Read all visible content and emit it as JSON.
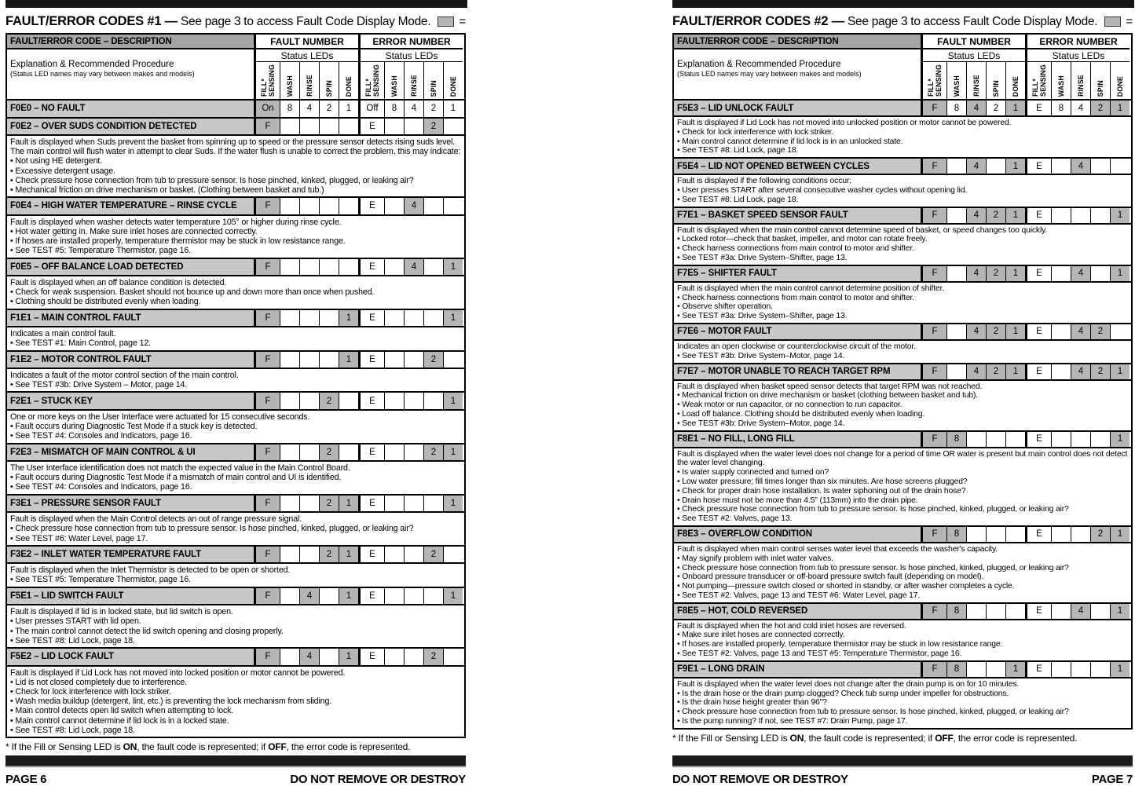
{
  "colors": {
    "led_on_bg": "#b5b5b5",
    "code_row_bg": "#c8c8c8",
    "table_header_bg": "#a5a5a5",
    "bar_color": "#161616"
  },
  "table_header": {
    "col_description": "FAULT/ERROR CODE – DESCRIPTION",
    "col_fault": "FAULT NUMBER",
    "col_error": "ERROR NUMBER",
    "status_leds": "Status LEDs",
    "explanation_title": "Explanation & Recommended Procedure",
    "explanation_sub": "(Status LED names may vary between makes and models)",
    "led_labels": [
      "FILL*\nSENSING",
      "WASH",
      "RINSE",
      "SPIN",
      "DONE"
    ]
  },
  "footnote": {
    "pre": "* If the Fill or Sensing LED is ",
    "on_word": "ON",
    "mid": ", the fault code is represented; if ",
    "off_word": "OFF",
    "post": ", the error code is represented."
  },
  "pages": [
    {
      "title_bold": "FAULT/ERROR CODES #1 —",
      "title_rest": " See page 3 to access Fault Code Display Mode.",
      "legend": "= ON",
      "footer_left": "PAGE 6",
      "footer_right": "DO NOT REMOVE OR DESTROY",
      "rows": [
        {
          "code": "F0E0 – NO FAULT",
          "fault_leds": [
            "On",
            "8",
            "4",
            "2",
            "1"
          ],
          "fault_on": [
            0
          ],
          "error_leds": [
            "Off",
            "8",
            "4",
            "2",
            "1"
          ],
          "error_on": [],
          "description": []
        },
        {
          "code": "F0E2 – OVER SUDS CONDITION DETECTED",
          "fault_leds": [
            "F",
            "",
            "",
            "",
            ""
          ],
          "fault_on": [
            0
          ],
          "error_leds": [
            "E",
            "",
            "",
            "2",
            ""
          ],
          "error_on": [
            3
          ],
          "description": [
            "Fault is displayed when Suds prevent the basket from spinning up to speed or the pressure sensor detects rising suds level. The main control will flush water in attempt to clear Suds. If the water flush is unable to correct the problem, this may indicate:",
            "• Not using HE detergent.",
            "• Excessive detergent usage.",
            "• Check pressure hose connection from tub to pressure sensor. Is hose pinched, kinked, plugged, or leaking air?",
            "• Mechanical friction on drive mechanism or basket. (Clothing between basket and tub.)"
          ]
        },
        {
          "code": "F0E4 – HIGH WATER TEMPERATURE – RINSE CYCLE",
          "fault_leds": [
            "F",
            "",
            "",
            "",
            ""
          ],
          "fault_on": [
            0
          ],
          "error_leds": [
            "E",
            "",
            "4",
            "",
            ""
          ],
          "error_on": [
            2
          ],
          "description": [
            "Fault is displayed when washer detects water temperature 105° or higher during rinse cycle.",
            "• Hot water getting in. Make sure inlet hoses are connected correctly.",
            "• If hoses are installed properly, temperature thermistor may be stuck in low resistance range.",
            "• See TEST #5: Temperature Thermistor, page 16."
          ]
        },
        {
          "code": "F0E5 – OFF BALANCE LOAD DETECTED",
          "fault_leds": [
            "F",
            "",
            "",
            "",
            ""
          ],
          "fault_on": [
            0
          ],
          "error_leds": [
            "E",
            "",
            "4",
            "",
            "1"
          ],
          "error_on": [
            2,
            4
          ],
          "description": [
            "Fault is displayed when an off balance condition is detected.",
            "• Check for weak suspension. Basket should not bounce up and down more than once when pushed.",
            "• Clothing should be distributed evenly when loading."
          ]
        },
        {
          "code": "F1E1 – MAIN CONTROL FAULT",
          "fault_leds": [
            "F",
            "",
            "",
            "",
            "1"
          ],
          "fault_on": [
            0,
            4
          ],
          "error_leds": [
            "E",
            "",
            "",
            "",
            "1"
          ],
          "error_on": [
            4
          ],
          "description": [
            "Indicates a main control fault.",
            "• See TEST #1: Main Control, page 12."
          ]
        },
        {
          "code": "F1E2 – MOTOR CONTROL FAULT",
          "fault_leds": [
            "F",
            "",
            "",
            "",
            "1"
          ],
          "fault_on": [
            0,
            4
          ],
          "error_leds": [
            "E",
            "",
            "",
            "2",
            ""
          ],
          "error_on": [
            3
          ],
          "description": [
            "Indicates a fault of the motor control section of the main control.",
            "• See TEST #3b: Drive System – Motor, page 14."
          ]
        },
        {
          "code": "F2E1 – STUCK KEY",
          "fault_leds": [
            "F",
            "",
            "",
            "2",
            ""
          ],
          "fault_on": [
            0,
            3
          ],
          "error_leds": [
            "E",
            "",
            "",
            "",
            "1"
          ],
          "error_on": [
            4
          ],
          "description": [
            "One or more keys on the User Interface were actuated for 15 consecutive seconds.",
            "• Fault occurs during Diagnostic Test Mode if a stuck key is detected.",
            "• See TEST #4: Consoles and Indicators, page 16."
          ]
        },
        {
          "code": "F2E3 – MISMATCH OF MAIN CONTROL & UI",
          "fault_leds": [
            "F",
            "",
            "",
            "2",
            ""
          ],
          "fault_on": [
            0,
            3
          ],
          "error_leds": [
            "E",
            "",
            "",
            "2",
            "1"
          ],
          "error_on": [
            3,
            4
          ],
          "description": [
            "The User Interface identification does not match the expected value in the Main Control Board.",
            "• Fault occurs during Diagnostic Test Mode if a mismatch of main control and UI is identified.",
            "• See TEST #4: Consoles and Indicators, page 16."
          ]
        },
        {
          "code": "F3E1 – PRESSURE SENSOR FAULT",
          "fault_leds": [
            "F",
            "",
            "",
            "2",
            "1"
          ],
          "fault_on": [
            0,
            3,
            4
          ],
          "error_leds": [
            "E",
            "",
            "",
            "",
            "1"
          ],
          "error_on": [
            4
          ],
          "description": [
            "Fault is displayed when the Main Control detects an out of range pressure signal.",
            "• Check pressure hose connection from tub to pressure sensor. Is hose pinched, kinked, plugged, or leaking air?",
            "• See TEST #6: Water Level, page 17."
          ]
        },
        {
          "code": "F3E2 – INLET WATER TEMPERATURE FAULT",
          "fault_leds": [
            "F",
            "",
            "",
            "2",
            "1"
          ],
          "fault_on": [
            0,
            3,
            4
          ],
          "error_leds": [
            "E",
            "",
            "",
            "2",
            ""
          ],
          "error_on": [
            3
          ],
          "description": [
            "Fault is displayed when the Inlet Thermistor is detected to be open or shorted.",
            "• See TEST #5: Temperature Thermistor, page 16."
          ]
        },
        {
          "code": "F5E1 – LID SWITCH FAULT",
          "fault_leds": [
            "F",
            "",
            "4",
            "",
            "1"
          ],
          "fault_on": [
            0,
            2,
            4
          ],
          "error_leds": [
            "E",
            "",
            "",
            "",
            "1"
          ],
          "error_on": [
            4
          ],
          "description": [
            "Fault is displayed if lid is in locked state, but lid switch is open.",
            "• User presses START with lid open.",
            "• The main control cannot detect the lid switch opening and closing properly.",
            "• See TEST #8: Lid Lock, page 18."
          ]
        },
        {
          "code": "F5E2 – LID LOCK FAULT",
          "fault_leds": [
            "F",
            "",
            "4",
            "",
            "1"
          ],
          "fault_on": [
            0,
            2,
            4
          ],
          "error_leds": [
            "E",
            "",
            "",
            "2",
            ""
          ],
          "error_on": [
            3
          ],
          "description": [
            "Fault is displayed if Lid Lock has not moved into locked position or motor cannot be powered.",
            "• Lid is not closed completely due to interference.",
            "• Check for lock interference with lock striker.",
            "• Wash media buildup (detergent, lint, etc.) is preventing the lock mechanism from sliding.",
            "• Main control detects open lid switch when attempting to lock.",
            "• Main control cannot determine if lid lock is in a locked state.",
            "• See TEST #8: Lid Lock, page 18."
          ]
        }
      ]
    },
    {
      "title_bold": "FAULT/ERROR CODES #2 —",
      "title_rest": " See page 3 to access Fault Code Display Mode.",
      "legend": "= ON",
      "footer_left": "DO NOT REMOVE OR DESTROY",
      "footer_right": "PAGE 7",
      "rows": [
        {
          "code": "F5E3 – LID UNLOCK FAULT",
          "fault_leds": [
            "F",
            "8",
            "4",
            "2",
            "1"
          ],
          "fault_on": [
            0,
            2,
            4
          ],
          "error_leds": [
            "E",
            "8",
            "4",
            "2",
            "1"
          ],
          "error_on": [
            3,
            4
          ],
          "description": [
            "Fault is displayed if Lid Lock has not moved into unlocked position or motor cannot be powered.",
            "• Check for lock interference with lock striker.",
            "• Main control cannot determine if lid lock is in an unlocked state.",
            "• See TEST #8: Lid Lock, page 18."
          ]
        },
        {
          "code": "F5E4 – LID NOT OPENED BETWEEN CYCLES",
          "fault_leds": [
            "F",
            "",
            "4",
            "",
            "1"
          ],
          "fault_on": [
            0,
            2,
            4
          ],
          "error_leds": [
            "E",
            "",
            "4",
            "",
            ""
          ],
          "error_on": [
            2
          ],
          "description": [
            "Fault is displayed if the following conditions occur:",
            "• User presses START after several consecutive washer cycles without opening lid.",
            "• See TEST #8: Lid Lock, page 18."
          ]
        },
        {
          "code": "F7E1 – BASKET SPEED SENSOR FAULT",
          "fault_leds": [
            "F",
            "",
            "4",
            "2",
            "1"
          ],
          "fault_on": [
            0,
            2,
            3,
            4
          ],
          "error_leds": [
            "E",
            "",
            "",
            "",
            "1"
          ],
          "error_on": [
            4
          ],
          "description": [
            "Fault is displayed when the main control cannot determine speed of basket, or speed changes too quickly.",
            "• Locked rotor—check that basket, impeller, and motor can rotate freely.",
            "• Check harness connections from main control to motor and shifter.",
            "• See TEST #3a: Drive System–Shifter, page 13."
          ]
        },
        {
          "code": "F7E5 – SHIFTER FAULT",
          "fault_leds": [
            "F",
            "",
            "4",
            "2",
            "1"
          ],
          "fault_on": [
            0,
            2,
            3,
            4
          ],
          "error_leds": [
            "E",
            "",
            "4",
            "",
            "1"
          ],
          "error_on": [
            2,
            4
          ],
          "description": [
            "Fault is displayed when the main control cannot determine position of shifter.",
            "• Check harness connections from main control to motor and shifter.",
            "• Observe shifter operation.",
            "• See TEST #3a: Drive System–Shifter, page 13."
          ]
        },
        {
          "code": "F7E6 – MOTOR FAULT",
          "fault_leds": [
            "F",
            "",
            "4",
            "2",
            "1"
          ],
          "fault_on": [
            0,
            2,
            3,
            4
          ],
          "error_leds": [
            "E",
            "",
            "4",
            "2",
            ""
          ],
          "error_on": [
            2,
            3
          ],
          "description": [
            "Indicates an open clockwise or counterclockwise circuit of the motor.",
            "• See TEST #3b: Drive System–Motor, page 14."
          ]
        },
        {
          "code": "F7E7 – MOTOR UNABLE TO REACH TARGET RPM",
          "fault_leds": [
            "F",
            "",
            "4",
            "2",
            "1"
          ],
          "fault_on": [
            0,
            2,
            3,
            4
          ],
          "error_leds": [
            "E",
            "",
            "4",
            "2",
            "1"
          ],
          "error_on": [
            2,
            3,
            4
          ],
          "description": [
            "Fault is displayed when basket speed sensor detects that target RPM was not reached.",
            "• Mechanical friction on drive mechanism or basket (clothing between basket and tub).",
            "• Weak motor or run capacitor, or no connection to run capacitor.",
            "• Load off balance. Clothing should be distributed evenly when loading.",
            "• See TEST #3b: Drive System–Motor, page 14."
          ]
        },
        {
          "code": "F8E1 – NO FILL, LONG FILL",
          "fault_leds": [
            "F",
            "8",
            "",
            "",
            ""
          ],
          "fault_on": [
            0,
            1
          ],
          "error_leds": [
            "E",
            "",
            "",
            "",
            "1"
          ],
          "error_on": [
            4
          ],
          "description": [
            "Fault is displayed when the water level does not change for a period of time OR water is present but main control does not detect the water level changing.",
            "• Is water supply connected and turned on?",
            "• Low water pressure; fill times longer than six minutes. Are hose screens plugged?",
            "• Check for proper drain hose installation. Is water siphoning out of the drain hose?",
            "• Drain hose must not be more than 4.5\" (113mm) into the drain pipe.",
            "• Check pressure hose connection from tub to pressure sensor. Is hose pinched, kinked, plugged, or leaking air?",
            "• See TEST #2: Valves, page 13."
          ]
        },
        {
          "code": "F8E3 – OVERFLOW CONDITION",
          "fault_leds": [
            "F",
            "8",
            "",
            "",
            ""
          ],
          "fault_on": [
            0,
            1
          ],
          "error_leds": [
            "E",
            "",
            "",
            "2",
            "1"
          ],
          "error_on": [
            3,
            4
          ],
          "description": [
            "Fault is displayed when main control senses water level that exceeds the washer's capacity.",
            "• May signify problem with inlet water valves.",
            "• Check pressure hose connection from tub to pressure sensor. Is hose pinched, kinked, plugged, or leaking air?",
            "• Onboard pressure transducer or off-board pressure switch fault (depending on model).",
            "• Not pumping—pressure switch closed or shorted in standby, or after washer completes a cycle.",
            "• See TEST #2: Valves, page 13 and TEST #6: Water Level, page 17."
          ]
        },
        {
          "code": "F8E5 – HOT, COLD REVERSED",
          "fault_leds": [
            "F",
            "8",
            "",
            "",
            ""
          ],
          "fault_on": [
            0,
            1
          ],
          "error_leds": [
            "E",
            "",
            "4",
            "",
            "1"
          ],
          "error_on": [
            2,
            4
          ],
          "description": [
            "Fault is displayed when the hot and cold inlet hoses are reversed.",
            "• Make sure inlet hoses are connected correctly.",
            "• If hoses are installed properly, temperature thermistor may be stuck in low resistance range.",
            "• See TEST #2: Valves, page 13 and TEST #5: Temperature Thermistor, page 16."
          ]
        },
        {
          "code": "F9E1 – LONG DRAIN",
          "fault_leds": [
            "F",
            "8",
            "",
            "",
            "1"
          ],
          "fault_on": [
            0,
            1,
            4
          ],
          "error_leds": [
            "E",
            "",
            "",
            "",
            "1"
          ],
          "error_on": [
            4
          ],
          "description": [
            "Fault is displayed when the water level does not change after the drain pump is on for 10 minutes.",
            "• Is the drain hose or the drain pump clogged? Check tub sump under impeller for obstructions.",
            "• Is the drain hose height greater than 96\"?",
            "• Check pressure hose connection from tub to pressure sensor. Is hose pinched, kinked, plugged, or leaking air?",
            "• Is the pump running? If not, see TEST #7: Drain Pump, page 17."
          ]
        }
      ]
    }
  ]
}
